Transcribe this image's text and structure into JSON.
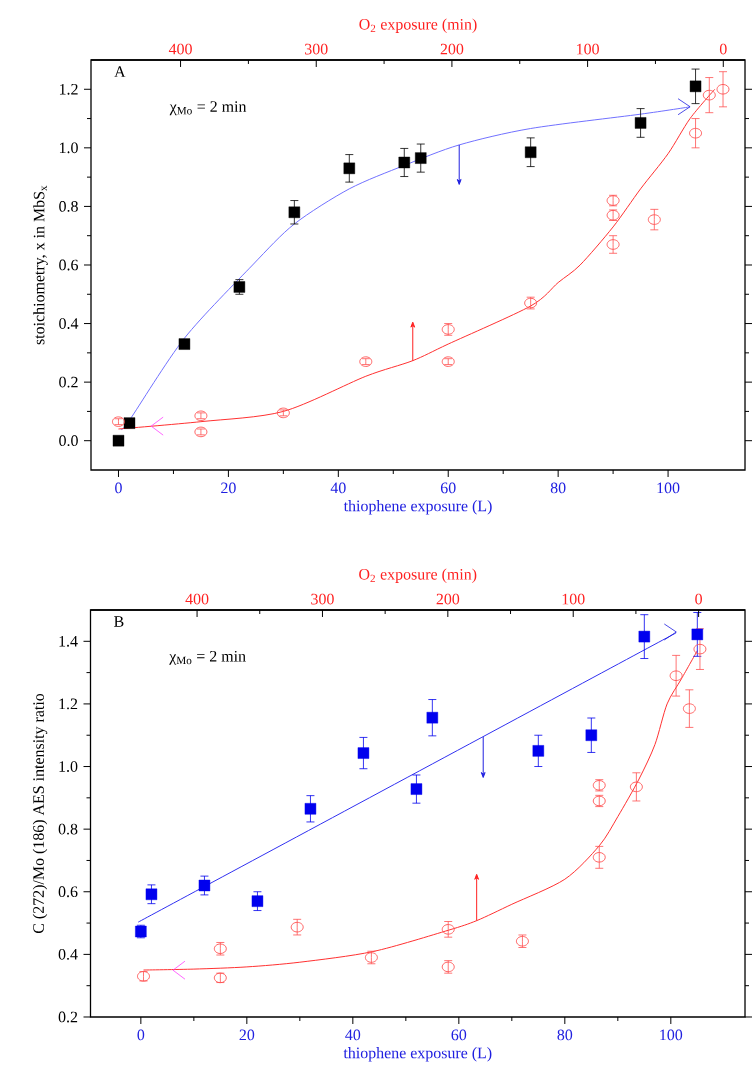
{
  "chart_data": [
    {
      "type": "scatter",
      "xlabel": "thiophene exposure (L)",
      "ylabel": "stoichiometry, x in MbS$_{x}$",
      "x2label": "O$_{2}$ exposure (min)",
      "xlim": [
        -5,
        114
      ],
      "xticks": [
        0,
        20,
        40,
        60,
        80,
        100
      ],
      "ylim": [
        -0.1,
        1.3
      ],
      "yticks": [
        {
          "value": 0,
          "label": "0.0"
        },
        {
          "value": 0.2,
          "label": "0.2"
        },
        {
          "value": 0.4,
          "label": "0.4"
        },
        {
          "value": 0.6,
          "label": "0.6"
        },
        {
          "value": 0.8,
          "label": "0.8"
        },
        {
          "value": 1,
          "label": "1.0"
        },
        {
          "value": 1.2,
          "label": "1.2"
        }
      ],
      "x2lim": [
        466,
        -16
      ],
      "x2ticks": [
        400,
        300,
        200,
        100,
        0
      ],
      "annotations": [
        "A",
        "χ$_{Mo}$ = 2 min"
      ],
      "series": [
        {
          "type": "line",
          "color": "#7070ff",
          "x": [
            0.5,
            2,
            12,
            24.4,
            32,
            42,
            52,
            62,
            75,
            95,
            104
          ],
          "values": [
            0.04,
            0.07,
            0.35,
            0.6,
            0.74,
            0.86,
            0.94,
            1.01,
            1.066,
            1.115,
            1.14
          ]
        },
        {
          "type": "line",
          "color": "#ff3030",
          "x": [
            0,
            15,
            30,
            45,
            53.5,
            60,
            75,
            80,
            84,
            90,
            95,
            100,
            104,
            108.5
          ],
          "values": [
            0.04,
            0.065,
            0.1,
            0.22,
            0.273,
            0.33,
            0.46,
            0.54,
            0.6,
            0.73,
            0.86,
            0.98,
            1.1,
            1.2
          ]
        },
        {
          "marker": "square",
          "color": "#000000",
          "x": [
            0,
            2,
            12,
            22,
            32,
            42,
            52,
            55,
            75,
            95,
            105
          ],
          "values": [
            0,
            0.06,
            0.33,
            0.525,
            0.78,
            0.93,
            0.95,
            0.965,
            0.985,
            1.085,
            1.21
          ],
          "errors": [
            0.01,
            0.01,
            0.015,
            0.025,
            0.04,
            0.047,
            0.048,
            0.048,
            0.049,
            0.049,
            0.059
          ]
        },
        {
          "marker": "circle",
          "color": "#ff5050",
          "x": [
            0,
            15,
            15,
            30,
            45,
            60,
            60,
            75,
            90,
            90,
            90,
            97.5,
            105,
            107.5,
            110
          ],
          "values": [
            0.065,
            0.085,
            0.03,
            0.095,
            0.27,
            0.38,
            0.27,
            0.47,
            0.82,
            0.77,
            0.67,
            0.755,
            1.05,
            1.18,
            1.2
          ],
          "errors": [
            0.01,
            0.01,
            0.01,
            0.01,
            0.01,
            0.02,
            0.01,
            0.02,
            0.018,
            0.018,
            0.03,
            0.035,
            0.05,
            0.06,
            0.06
          ]
        }
      ]
    },
    {
      "type": "scatter",
      "xlabel": "thiophene exposure (L)",
      "ylabel": "C (272)/Mo (186) AES intensity ratio",
      "x2label": "O$_{2}$ exposure (min)",
      "xlim": [
        -9.5,
        114
      ],
      "xticks": [
        0,
        20,
        40,
        60,
        80,
        100
      ],
      "ylim": [
        0.2,
        1.5
      ],
      "yticks": [
        {
          "value": 0.2,
          "label": "0.2"
        },
        {
          "value": 0.4,
          "label": "0.4"
        },
        {
          "value": 0.6,
          "label": "0.6"
        },
        {
          "value": 0.8,
          "label": "0.8"
        },
        {
          "value": 1,
          "label": "1.0"
        },
        {
          "value": 1.2,
          "label": "1.2"
        },
        {
          "value": 1.4,
          "label": "1.4"
        }
      ],
      "x2lim": [
        485,
        -37
      ],
      "x2ticks": [
        400,
        300,
        200,
        100,
        0
      ],
      "annotations": [
        "B",
        "χ$_{Mo}$ = 2 min"
      ],
      "series": [
        {
          "type": "line",
          "color": "#3030f0",
          "x": [
            -0.5,
            101
          ],
          "values": [
            0.503,
            1.427
          ]
        },
        {
          "type": "line",
          "color": "#ff3030",
          "x": [
            0.5,
            10,
            20,
            30,
            43.8,
            58,
            63.4,
            70,
            80,
            86.5,
            90,
            94,
            97,
            99.3,
            102,
            105
          ],
          "values": [
            0.35,
            0.353,
            0.36,
            0.375,
            0.409,
            0.477,
            0.508,
            0.56,
            0.64,
            0.747,
            0.84,
            0.96,
            1.07,
            1.2,
            1.28,
            1.37
          ]
        },
        {
          "marker": "square",
          "color": "#0000ee",
          "x": [
            0,
            2,
            12,
            22,
            32,
            42,
            52,
            55,
            75,
            85,
            95,
            105
          ],
          "values": [
            0.473,
            0.592,
            0.62,
            0.57,
            0.865,
            1.043,
            0.928,
            1.156,
            1.05,
            1.1,
            1.415,
            1.422
          ],
          "errors": [
            0.02,
            0.03,
            0.03,
            0.03,
            0.042,
            0.05,
            0.045,
            0.058,
            0.05,
            0.055,
            0.07,
            0.07
          ]
        },
        {
          "marker": "circle",
          "color": "#ff5050",
          "x": [
            0.5,
            15,
            15,
            29.5,
            43.5,
            58,
            58,
            72,
            86.5,
            86.5,
            86.5,
            93.5,
            101,
            103.5,
            105.5
          ],
          "values": [
            0.33,
            0.418,
            0.325,
            0.487,
            0.39,
            0.48,
            0.36,
            0.442,
            0.71,
            0.89,
            0.94,
            0.935,
            1.29,
            1.185,
            1.375
          ],
          "errors": [
            0.015,
            0.02,
            0.015,
            0.025,
            0.02,
            0.025,
            0.02,
            0.02,
            0.035,
            0.018,
            0.018,
            0.045,
            0.065,
            0.06,
            0.065
          ]
        }
      ]
    }
  ]
}
